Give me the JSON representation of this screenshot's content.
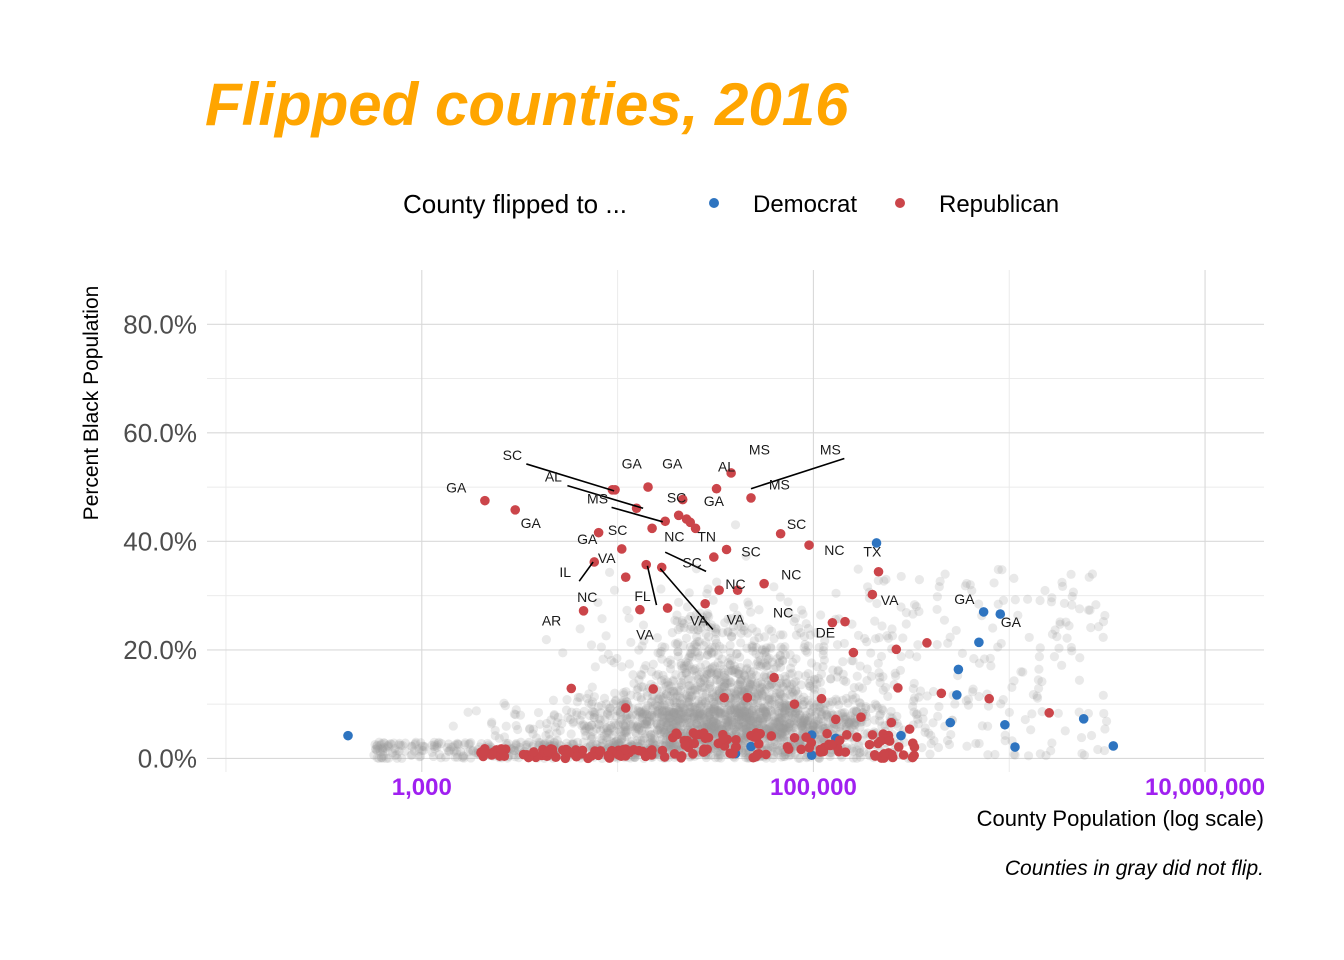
{
  "chart_data": {
    "type": "scatter",
    "title": "Flipped counties, 2016",
    "xlabel": "County Population (log scale)",
    "ylabel": "Percent Black Population",
    "caption": "Counties in gray did not flip.",
    "x_scale": "log10",
    "xlim": [
      80,
      20000000
    ],
    "ylim": [
      -0.025,
      0.9
    ],
    "x_ticks": [
      {
        "value": 1000,
        "label": "1,000"
      },
      {
        "value": 100000,
        "label": "100,000"
      },
      {
        "value": 10000000,
        "label": "10,000,000"
      }
    ],
    "x_minor_ticks": [
      100,
      10000,
      1000000
    ],
    "y_ticks": [
      {
        "value": 0.0,
        "label": "0.0%"
      },
      {
        "value": 0.2,
        "label": "20.0%"
      },
      {
        "value": 0.4,
        "label": "40.0%"
      },
      {
        "value": 0.6,
        "label": "60.0%"
      },
      {
        "value": 0.8,
        "label": "80.0%"
      }
    ],
    "y_minor_ticks": [
      0.1,
      0.3,
      0.5,
      0.7
    ],
    "grid": true,
    "legend": {
      "title": "County flipped to ...",
      "placement": "top",
      "entries": [
        {
          "label": "Democrat",
          "color": "#2e74c0"
        },
        {
          "label": "Republican",
          "color": "#cb454a"
        }
      ]
    },
    "colors": {
      "title": "#ffa500",
      "x_tick": "#a020f0",
      "not_flipped": "#999999",
      "grid": "#d9d9d9"
    },
    "background_points_note": "Gray points are counties that did not flip; they are drawn as a dense cloud.",
    "series": [
      {
        "name": "Democrat",
        "color": "#2e74c0",
        "points": [
          {
            "x": 420,
            "y": 0.042
          },
          {
            "x": 40000,
            "y": 0.009
          },
          {
            "x": 48000,
            "y": 0.022
          },
          {
            "x": 98000,
            "y": 0.043
          },
          {
            "x": 98000,
            "y": 0.006
          },
          {
            "x": 130000,
            "y": 0.037
          },
          {
            "x": 210000,
            "y": 0.397
          },
          {
            "x": 280000,
            "y": 0.042
          },
          {
            "x": 500000,
            "y": 0.066
          },
          {
            "x": 550000,
            "y": 0.164
          },
          {
            "x": 540000,
            "y": 0.117
          },
          {
            "x": 700000,
            "y": 0.214
          },
          {
            "x": 740000,
            "y": 0.27
          },
          {
            "x": 900000,
            "y": 0.266
          },
          {
            "x": 950000,
            "y": 0.062
          },
          {
            "x": 1070000,
            "y": 0.021
          },
          {
            "x": 2400000,
            "y": 0.073
          },
          {
            "x": 3400000,
            "y": 0.023
          }
        ]
      },
      {
        "name": "Republican",
        "color": "#cb454a",
        "points": [
          {
            "x": 2100,
            "y": 0.475
          },
          {
            "x": 3000,
            "y": 0.458
          },
          {
            "x": 5800,
            "y": 0.129
          },
          {
            "x": 6700,
            "y": 0.272
          },
          {
            "x": 7600,
            "y": 0.362
          },
          {
            "x": 8000,
            "y": 0.416
          },
          {
            "x": 9400,
            "y": 0.495
          },
          {
            "x": 9700,
            "y": 0.495
          },
          {
            "x": 10500,
            "y": 0.386
          },
          {
            "x": 11000,
            "y": 0.334
          },
          {
            "x": 11000,
            "y": 0.093
          },
          {
            "x": 12500,
            "y": 0.461
          },
          {
            "x": 13000,
            "y": 0.274
          },
          {
            "x": 14000,
            "y": 0.357
          },
          {
            "x": 14300,
            "y": 0.5
          },
          {
            "x": 15000,
            "y": 0.424
          },
          {
            "x": 15200,
            "y": 0.128
          },
          {
            "x": 16800,
            "y": 0.352
          },
          {
            "x": 17500,
            "y": 0.437
          },
          {
            "x": 18000,
            "y": 0.277
          },
          {
            "x": 20500,
            "y": 0.448
          },
          {
            "x": 21500,
            "y": 0.477
          },
          {
            "x": 22500,
            "y": 0.441
          },
          {
            "x": 23500,
            "y": 0.435
          },
          {
            "x": 25000,
            "y": 0.424
          },
          {
            "x": 28000,
            "y": 0.285
          },
          {
            "x": 31000,
            "y": 0.371
          },
          {
            "x": 32000,
            "y": 0.497
          },
          {
            "x": 33000,
            "y": 0.31
          },
          {
            "x": 35000,
            "y": 0.112
          },
          {
            "x": 36000,
            "y": 0.385
          },
          {
            "x": 38000,
            "y": 0.526
          },
          {
            "x": 41000,
            "y": 0.31
          },
          {
            "x": 46000,
            "y": 0.112
          },
          {
            "x": 48000,
            "y": 0.48
          },
          {
            "x": 56000,
            "y": 0.322
          },
          {
            "x": 63000,
            "y": 0.149
          },
          {
            "x": 68000,
            "y": 0.414
          },
          {
            "x": 80000,
            "y": 0.1
          },
          {
            "x": 95000,
            "y": 0.393
          },
          {
            "x": 110000,
            "y": 0.11
          },
          {
            "x": 125000,
            "y": 0.25
          },
          {
            "x": 130000,
            "y": 0.072
          },
          {
            "x": 145000,
            "y": 0.252
          },
          {
            "x": 160000,
            "y": 0.195
          },
          {
            "x": 175000,
            "y": 0.076
          },
          {
            "x": 200000,
            "y": 0.302
          },
          {
            "x": 215000,
            "y": 0.344
          },
          {
            "x": 250000,
            "y": 0.066
          },
          {
            "x": 265000,
            "y": 0.201
          },
          {
            "x": 270000,
            "y": 0.13
          },
          {
            "x": 310000,
            "y": 0.054
          },
          {
            "x": 380000,
            "y": 0.213
          },
          {
            "x": 450000,
            "y": 0.12
          },
          {
            "x": 790000,
            "y": 0.11
          },
          {
            "x": 1600000,
            "y": 0.084
          }
        ]
      }
    ],
    "annotations": [
      {
        "text": "SC",
        "x": 2900,
        "y": 0.55,
        "line_to": {
          "x": 9600,
          "y": 0.493
        }
      },
      {
        "text": "GA",
        "x": 1500,
        "y": 0.49
      },
      {
        "text": "AL",
        "x": 4700,
        "y": 0.51,
        "line_to": {
          "x": 13500,
          "y": 0.461
        }
      },
      {
        "text": "GA",
        "x": 11800,
        "y": 0.534
      },
      {
        "text": "GA",
        "x": 19000,
        "y": 0.534
      },
      {
        "text": "AL",
        "x": 36000,
        "y": 0.529
      },
      {
        "text": "MS",
        "x": 53000,
        "y": 0.56
      },
      {
        "text": "MS",
        "x": 122000,
        "y": 0.56,
        "line_to": {
          "x": 48000,
          "y": 0.497
        }
      },
      {
        "text": "MS",
        "x": 7900,
        "y": 0.47,
        "line_to": {
          "x": 17000,
          "y": 0.436
        }
      },
      {
        "text": "SC",
        "x": 20000,
        "y": 0.472
      },
      {
        "text": "GA",
        "x": 31000,
        "y": 0.465
      },
      {
        "text": "MS",
        "x": 67000,
        "y": 0.496
      },
      {
        "text": "GA",
        "x": 3600,
        "y": 0.425
      },
      {
        "text": "SC",
        "x": 10000,
        "y": 0.412
      },
      {
        "text": "NC",
        "x": 19500,
        "y": 0.4
      },
      {
        "text": "TN",
        "x": 28500,
        "y": 0.4
      },
      {
        "text": "SC",
        "x": 82000,
        "y": 0.423
      },
      {
        "text": "GA",
        "x": 7000,
        "y": 0.395
      },
      {
        "text": "SC",
        "x": 48000,
        "y": 0.372
      },
      {
        "text": "NC",
        "x": 128000,
        "y": 0.375
      },
      {
        "text": "VA",
        "x": 8800,
        "y": 0.36
      },
      {
        "text": "SC",
        "x": 24000,
        "y": 0.352,
        "line_to": {
          "x": 17500,
          "y": 0.38
        }
      },
      {
        "text": "IL",
        "x": 5400,
        "y": 0.334,
        "line_to": {
          "x": 7500,
          "y": 0.362
        }
      },
      {
        "text": "TX",
        "x": 200000,
        "y": 0.372
      },
      {
        "text": "FL",
        "x": 13400,
        "y": 0.29,
        "line_to": {
          "x": 14200,
          "y": 0.355
        }
      },
      {
        "text": "NC",
        "x": 40000,
        "y": 0.312
      },
      {
        "text": "NC",
        "x": 77000,
        "y": 0.33
      },
      {
        "text": "NC",
        "x": 7000,
        "y": 0.288
      },
      {
        "text": "VA",
        "x": 245000,
        "y": 0.283
      },
      {
        "text": "GA",
        "x": 590000,
        "y": 0.285
      },
      {
        "text": "AR",
        "x": 4600,
        "y": 0.245
      },
      {
        "text": "VA",
        "x": 26000,
        "y": 0.245,
        "line_to": {
          "x": 16500,
          "y": 0.35
        }
      },
      {
        "text": "VA",
        "x": 40000,
        "y": 0.247
      },
      {
        "text": "NC",
        "x": 70000,
        "y": 0.26
      },
      {
        "text": "GA",
        "x": 1020000,
        "y": 0.242
      },
      {
        "text": "DE",
        "x": 115000,
        "y": 0.223
      },
      {
        "text": "VA",
        "x": 13800,
        "y": 0.219
      }
    ]
  }
}
